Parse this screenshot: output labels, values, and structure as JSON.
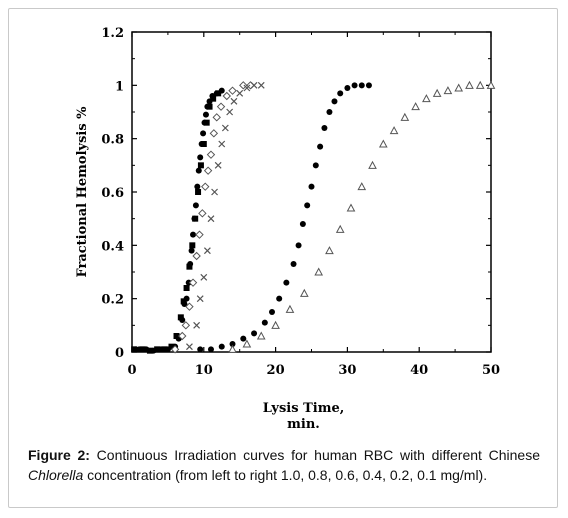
{
  "caption": {
    "label": "Figure 2:",
    "text_before": " Continuous Irradiation curves for human RBC with different Chinese ",
    "italic": "Chlorella",
    "text_after": " concentration (from left to right 1.0, 0.8, 0.6, 0.4, 0.2, 0.1 mg/ml)."
  },
  "chart_data": {
    "type": "scatter",
    "xlabel": "Lysis Time, min.",
    "ylabel": "Fractional Hemolysis %",
    "xlim": [
      0,
      50
    ],
    "ylim": [
      0,
      1.2
    ],
    "x_ticks": [
      0,
      10,
      20,
      30,
      40,
      50
    ],
    "x_tick_labels": [
      "0",
      "10",
      "20",
      "30",
      "40",
      "50"
    ],
    "y_ticks": [
      0,
      0.2,
      0.4,
      0.6,
      0.8,
      1,
      1.2
    ],
    "y_tick_labels": [
      "0",
      "0.2",
      "0.4",
      "0.6",
      "0.8",
      "1",
      "1.2"
    ],
    "grid": false,
    "series": [
      {
        "marker": "filled-circle",
        "color": "#000000",
        "points": [
          [
            0.5,
            0.01
          ],
          [
            1,
            0.01
          ],
          [
            2,
            0.01
          ],
          [
            3,
            0.005
          ],
          [
            4,
            0.01
          ],
          [
            5,
            0.01
          ],
          [
            6,
            0.02
          ],
          [
            6.5,
            0.05
          ],
          [
            7,
            0.12
          ],
          [
            7.3,
            0.18
          ],
          [
            7.6,
            0.2
          ],
          [
            7.9,
            0.26
          ],
          [
            8.1,
            0.33
          ],
          [
            8.3,
            0.38
          ],
          [
            8.5,
            0.44
          ],
          [
            8.7,
            0.5
          ],
          [
            8.9,
            0.55
          ],
          [
            9.1,
            0.62
          ],
          [
            9.3,
            0.68
          ],
          [
            9.5,
            0.73
          ],
          [
            9.7,
            0.78
          ],
          [
            9.9,
            0.82
          ],
          [
            10.1,
            0.86
          ],
          [
            10.3,
            0.89
          ],
          [
            10.5,
            0.92
          ],
          [
            10.8,
            0.94
          ],
          [
            11.2,
            0.96
          ],
          [
            11.8,
            0.97
          ],
          [
            12.5,
            0.98
          ]
        ]
      },
      {
        "marker": "filled-square",
        "color": "#000000",
        "points": [
          [
            0.3,
            0.01
          ],
          [
            1.5,
            0.01
          ],
          [
            2.5,
            0.005
          ],
          [
            3.5,
            0.01
          ],
          [
            4.5,
            0.01
          ],
          [
            5.5,
            0.02
          ],
          [
            6.2,
            0.06
          ],
          [
            6.8,
            0.13
          ],
          [
            7.2,
            0.19
          ],
          [
            7.6,
            0.24
          ],
          [
            8,
            0.32
          ],
          [
            8.4,
            0.4
          ],
          [
            8.8,
            0.5
          ],
          [
            9.2,
            0.6
          ],
          [
            9.6,
            0.7
          ],
          [
            10,
            0.78
          ],
          [
            10.4,
            0.86
          ],
          [
            10.8,
            0.92
          ],
          [
            11.3,
            0.95
          ],
          [
            12,
            0.97
          ]
        ]
      },
      {
        "marker": "open-diamond",
        "color": "#555555",
        "points": [
          [
            6,
            0.01
          ],
          [
            7,
            0.06
          ],
          [
            7.5,
            0.1
          ],
          [
            8,
            0.17
          ],
          [
            8.5,
            0.26
          ],
          [
            9,
            0.36
          ],
          [
            9.4,
            0.44
          ],
          [
            9.8,
            0.52
          ],
          [
            10.2,
            0.62
          ],
          [
            10.6,
            0.68
          ],
          [
            11,
            0.74
          ],
          [
            11.4,
            0.82
          ],
          [
            11.8,
            0.88
          ],
          [
            12.4,
            0.92
          ],
          [
            13.2,
            0.96
          ],
          [
            14,
            0.98
          ],
          [
            15.5,
            1.0
          ],
          [
            16.5,
            1.0
          ]
        ]
      },
      {
        "marker": "cross",
        "color": "#555555",
        "points": [
          [
            8,
            0.02
          ],
          [
            9,
            0.1
          ],
          [
            9.5,
            0.2
          ],
          [
            10,
            0.28
          ],
          [
            10.5,
            0.38
          ],
          [
            11,
            0.5
          ],
          [
            11.5,
            0.6
          ],
          [
            12,
            0.7
          ],
          [
            12.5,
            0.78
          ],
          [
            13,
            0.84
          ],
          [
            13.6,
            0.9
          ],
          [
            14.2,
            0.94
          ],
          [
            15,
            0.97
          ],
          [
            16,
            0.99
          ],
          [
            17,
            1.0
          ],
          [
            18,
            1.0
          ]
        ]
      },
      {
        "marker": "filled-circle",
        "color": "#000000",
        "points": [
          [
            9.5,
            0.01
          ],
          [
            11,
            0.01
          ],
          [
            12.5,
            0.02
          ],
          [
            14,
            0.03
          ],
          [
            15.5,
            0.05
          ],
          [
            17,
            0.07
          ],
          [
            18.5,
            0.11
          ],
          [
            19.5,
            0.15
          ],
          [
            20.5,
            0.2
          ],
          [
            21.5,
            0.26
          ],
          [
            22.5,
            0.33
          ],
          [
            23.2,
            0.4
          ],
          [
            23.8,
            0.48
          ],
          [
            24.4,
            0.55
          ],
          [
            25,
            0.62
          ],
          [
            25.6,
            0.7
          ],
          [
            26.2,
            0.77
          ],
          [
            26.8,
            0.84
          ],
          [
            27.5,
            0.9
          ],
          [
            28.2,
            0.94
          ],
          [
            29,
            0.97
          ],
          [
            30,
            0.99
          ],
          [
            31,
            1.0
          ],
          [
            32,
            1.0
          ],
          [
            33,
            1.0
          ]
        ]
      },
      {
        "marker": "open-triangle",
        "color": "#555555",
        "points": [
          [
            14,
            0.01
          ],
          [
            16,
            0.03
          ],
          [
            18,
            0.06
          ],
          [
            20,
            0.1
          ],
          [
            22,
            0.16
          ],
          [
            24,
            0.22
          ],
          [
            26,
            0.3
          ],
          [
            27.5,
            0.38
          ],
          [
            29,
            0.46
          ],
          [
            30.5,
            0.54
          ],
          [
            32,
            0.62
          ],
          [
            33.5,
            0.7
          ],
          [
            35,
            0.78
          ],
          [
            36.5,
            0.83
          ],
          [
            38,
            0.88
          ],
          [
            39.5,
            0.92
          ],
          [
            41,
            0.95
          ],
          [
            42.5,
            0.97
          ],
          [
            44,
            0.98
          ],
          [
            45.5,
            0.99
          ],
          [
            47,
            1.0
          ],
          [
            48.5,
            1.0
          ],
          [
            50,
            1.0
          ]
        ]
      }
    ]
  }
}
